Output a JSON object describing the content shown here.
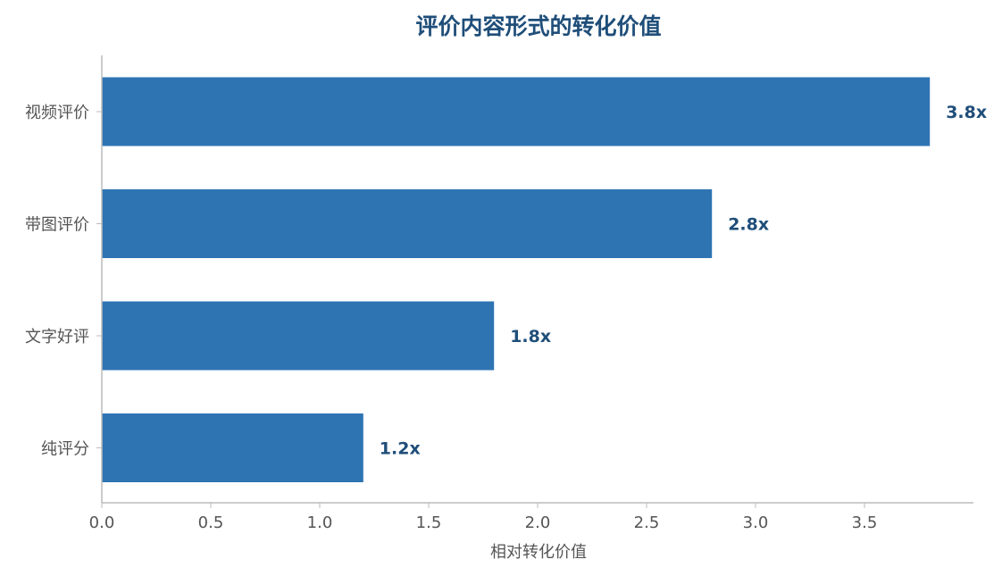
{
  "chart_data": {
    "type": "bar",
    "orientation": "horizontal",
    "title": "评价内容形式的转化价值",
    "xlabel": "相对转化价值",
    "ylabel": "",
    "categories": [
      "视频评价",
      "带图评价",
      "文字好评",
      "纯评分"
    ],
    "values": [
      3.8,
      2.8,
      1.8,
      1.2
    ],
    "value_labels": [
      "3.8x",
      "2.8x",
      "1.8x",
      "1.2x"
    ],
    "xlim": [
      0,
      4.0
    ],
    "xticks": [
      0.0,
      0.5,
      1.0,
      1.5,
      2.0,
      2.5,
      3.0,
      3.5
    ],
    "xtick_labels": [
      "0.0",
      "0.5",
      "1.0",
      "1.5",
      "2.0",
      "2.5",
      "3.0",
      "3.5"
    ],
    "grid": false,
    "legend": "none",
    "colors": {
      "bar": "#2e74b3",
      "title": "#1f4e79",
      "value_label": "#1f4e79",
      "axis": "#bbbbbb",
      "text": "#555555"
    }
  }
}
